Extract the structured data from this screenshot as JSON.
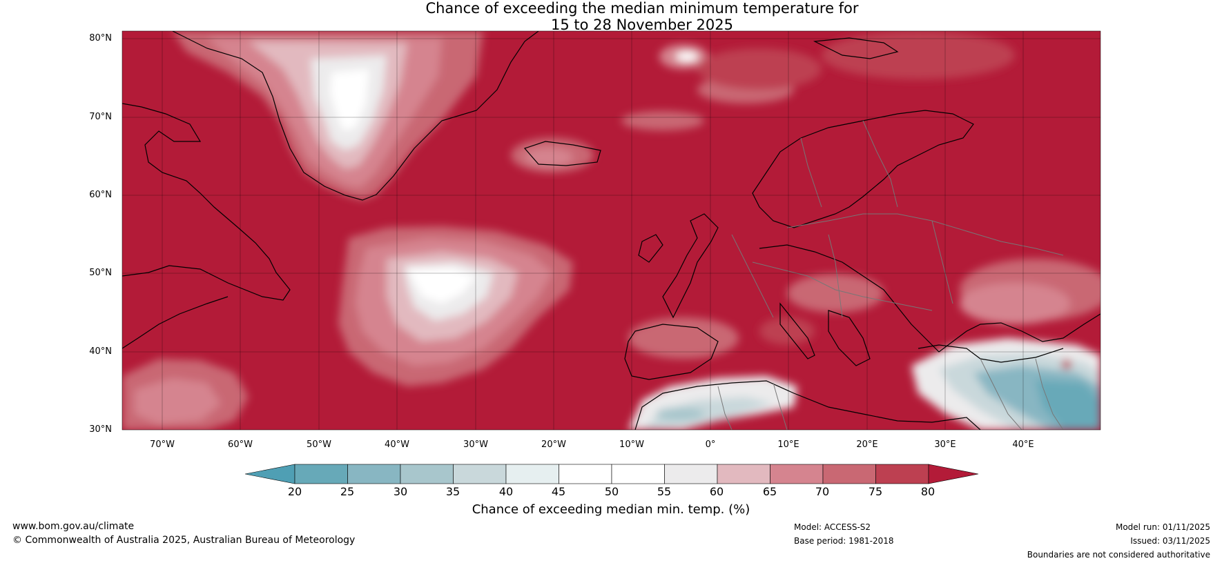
{
  "title": {
    "line1": "Chance of exceeding the median minimum temperature for",
    "line2": "15 to 28 November 2025"
  },
  "map": {
    "lon_range": [
      -75,
      50
    ],
    "lat_range": [
      30,
      81
    ],
    "lat_ticks": [
      {
        "value": 80,
        "label": "80°N"
      },
      {
        "value": 70,
        "label": "70°N"
      },
      {
        "value": 60,
        "label": "60°N"
      },
      {
        "value": 50,
        "label": "50°N"
      },
      {
        "value": 40,
        "label": "40°N"
      },
      {
        "value": 30,
        "label": "30°N"
      }
    ],
    "lon_ticks": [
      {
        "value": -70,
        "label": "70°W"
      },
      {
        "value": -60,
        "label": "60°W"
      },
      {
        "value": -50,
        "label": "50°W"
      },
      {
        "value": -40,
        "label": "40°W"
      },
      {
        "value": -30,
        "label": "30°W"
      },
      {
        "value": -20,
        "label": "20°W"
      },
      {
        "value": -10,
        "label": "10°W"
      },
      {
        "value": 0,
        "label": "0°"
      },
      {
        "value": 10,
        "label": "10°E"
      },
      {
        "value": 20,
        "label": "20°E"
      },
      {
        "value": 30,
        "label": "30°E"
      },
      {
        "value": 40,
        "label": "40°E"
      }
    ]
  },
  "colorbar": {
    "title": "Chance of exceeding median min. temp. (%)",
    "ticks": [
      "20",
      "25",
      "30",
      "35",
      "40",
      "45",
      "50",
      "55",
      "60",
      "65",
      "70",
      "75",
      "80"
    ],
    "colors": [
      "#67a9b8",
      "#88b6c2",
      "#a8c6cc",
      "#c9d8db",
      "#e6eff0",
      "#ffffff",
      "#ffffff",
      "#ecebec",
      "#e2b9bf",
      "#d5848f",
      "#c96873",
      "#bd4051"
    ],
    "under_color": "#4f9fb4",
    "over_color": "#b31b38"
  },
  "footer": {
    "url": "www.bom.gov.au/climate",
    "copyright": "© Commonwealth of Australia 2025, Australian Bureau of Meteorology",
    "model": "Model: ACCESS-S2",
    "base_period": "Base period: 1981-2018",
    "model_run": "Model run: 01/11/2025",
    "issued": "Issued: 03/11/2025",
    "boundaries": "Boundaries are not considered authoritative"
  }
}
